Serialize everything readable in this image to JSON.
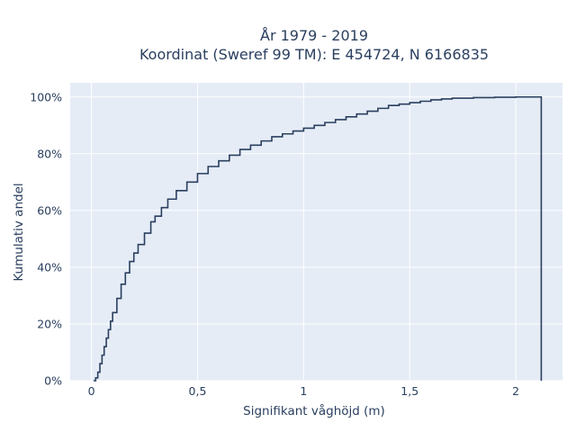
{
  "chart_data": {
    "type": "line",
    "line_shape": "step",
    "title_lines": [
      "År 1979 - 2019",
      "Koordinat (Sweref 99 TM): E 454724, N 6166835"
    ],
    "xlabel": "Signifikant våghöjd (m)",
    "ylabel": "Kumulativ andel",
    "xlim": [
      -0.1,
      2.22
    ],
    "ylim": [
      0,
      1.05
    ],
    "x_ticks": [
      {
        "value": 0,
        "label": "0"
      },
      {
        "value": 0.5,
        "label": "0,5"
      },
      {
        "value": 1,
        "label": "1"
      },
      {
        "value": 1.5,
        "label": "1,5"
      },
      {
        "value": 2,
        "label": "2"
      }
    ],
    "y_ticks": [
      {
        "value": 0,
        "label": "0%"
      },
      {
        "value": 0.2,
        "label": "20%"
      },
      {
        "value": 0.4,
        "label": "40%"
      },
      {
        "value": 0.6,
        "label": "60%"
      },
      {
        "value": 0.8,
        "label": "80%"
      },
      {
        "value": 1.0,
        "label": "100%"
      }
    ],
    "grid": true,
    "colors": {
      "line": "#2a3f5f",
      "plot_bg": "#e5ecf6",
      "grid": "#ffffff",
      "text": "#2a3f5f"
    },
    "series": [
      {
        "x": [
          0.01,
          0.02,
          0.03,
          0.04,
          0.05,
          0.06,
          0.07,
          0.08,
          0.09,
          0.1,
          0.12,
          0.14,
          0.16,
          0.18,
          0.2,
          0.22,
          0.25,
          0.28,
          0.3,
          0.33,
          0.36,
          0.4,
          0.45,
          0.5,
          0.55,
          0.6,
          0.65,
          0.7,
          0.75,
          0.8,
          0.85,
          0.9,
          0.95,
          1.0,
          1.05,
          1.1,
          1.15,
          1.2,
          1.25,
          1.3,
          1.35,
          1.4,
          1.45,
          1.5,
          1.55,
          1.6,
          1.65,
          1.7,
          1.8,
          1.9,
          2.0,
          2.12,
          2.12
        ],
        "y": [
          0.0,
          0.01,
          0.03,
          0.06,
          0.09,
          0.12,
          0.15,
          0.18,
          0.21,
          0.24,
          0.29,
          0.34,
          0.38,
          0.42,
          0.45,
          0.48,
          0.52,
          0.56,
          0.58,
          0.61,
          0.64,
          0.67,
          0.7,
          0.73,
          0.755,
          0.775,
          0.795,
          0.815,
          0.83,
          0.845,
          0.86,
          0.87,
          0.88,
          0.89,
          0.9,
          0.91,
          0.92,
          0.93,
          0.94,
          0.95,
          0.96,
          0.97,
          0.975,
          0.98,
          0.985,
          0.99,
          0.993,
          0.996,
          0.998,
          0.999,
          1.0,
          1.0,
          0.0
        ]
      }
    ]
  }
}
